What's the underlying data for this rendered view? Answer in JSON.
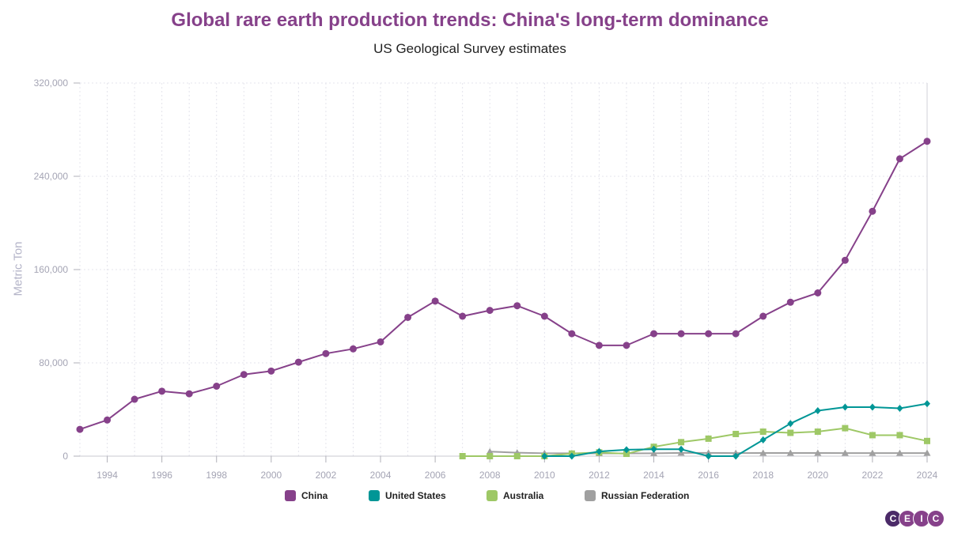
{
  "chart_data": {
    "type": "line",
    "title": "Global rare earth production trends: China's long-term dominance",
    "subtitle": "US Geological Survey estimates",
    "ylabel": "Metric Ton",
    "ylim": [
      0,
      320000
    ],
    "yticks": [
      0,
      80000,
      160000,
      240000,
      320000
    ],
    "ytick_labels": [
      "0",
      "80,000",
      "160,000",
      "240,000",
      "320,000"
    ],
    "xlim": [
      1993,
      2024
    ],
    "xticks": [
      1994,
      1996,
      1998,
      2000,
      2002,
      2004,
      2006,
      2008,
      2010,
      2012,
      2014,
      2016,
      2018,
      2020,
      2022,
      2024
    ],
    "xtick_labels": [
      "1994",
      "1996",
      "1998",
      "2000",
      "2002",
      "2004",
      "2006",
      "2008",
      "2010",
      "2012",
      "2014",
      "2016",
      "2018",
      "2020",
      "2022",
      "2024"
    ],
    "grid": true,
    "legend_position": "bottom-center",
    "series": [
      {
        "name": "China",
        "color": "#86418a",
        "marker": "circle",
        "x": [
          1993,
          1994,
          1995,
          1996,
          1997,
          1998,
          1999,
          2000,
          2001,
          2002,
          2003,
          2004,
          2005,
          2006,
          2007,
          2008,
          2009,
          2010,
          2011,
          2012,
          2013,
          2014,
          2015,
          2016,
          2017,
          2018,
          2019,
          2020,
          2021,
          2022,
          2023,
          2024
        ],
        "values": [
          23000,
          31000,
          48800,
          55700,
          53500,
          60000,
          70000,
          73000,
          80600,
          88000,
          92000,
          98000,
          119000,
          133000,
          120000,
          125000,
          129000,
          120000,
          105000,
          95000,
          95000,
          105000,
          105000,
          105000,
          105000,
          120000,
          132000,
          140000,
          168000,
          210000,
          255000,
          270000
        ]
      },
      {
        "name": "United States",
        "color": "#009696",
        "marker": "diamond",
        "x": [
          2010,
          2011,
          2012,
          2013,
          2014,
          2015,
          2016,
          2017,
          2018,
          2019,
          2020,
          2021,
          2022,
          2023,
          2024
        ],
        "values": [
          0,
          0,
          4000,
          5500,
          5900,
          5900,
          0,
          0,
          14000,
          28000,
          39000,
          42000,
          42000,
          41000,
          45000
        ]
      },
      {
        "name": "Australia",
        "color": "#9ec866",
        "marker": "square",
        "x": [
          2007,
          2008,
          2009,
          2010,
          2011,
          2012,
          2013,
          2014,
          2015,
          2016,
          2017,
          2018,
          2019,
          2020,
          2021,
          2022,
          2023,
          2024
        ],
        "values": [
          0,
          0,
          0,
          0,
          2200,
          3200,
          2000,
          8000,
          12000,
          15000,
          19000,
          21000,
          20000,
          21000,
          24000,
          18000,
          18000,
          13000
        ]
      },
      {
        "name": "Russian Federation",
        "color": "#a0a0a0",
        "marker": "triangle",
        "x": [
          2008,
          2009,
          2010,
          2011,
          2012,
          2013,
          2014,
          2015,
          2016,
          2017,
          2018,
          2019,
          2020,
          2021,
          2022,
          2023,
          2024
        ],
        "values": [
          3900,
          3000,
          2500,
          2500,
          2400,
          2400,
          2500,
          2800,
          2800,
          2600,
          2700,
          2700,
          2700,
          2600,
          2600,
          2600,
          2600
        ]
      }
    ]
  },
  "brand": {
    "letters": [
      "C",
      "E",
      "I",
      "C"
    ],
    "colors": [
      "#4b2a68",
      "#86418a",
      "#86418a",
      "#86418a"
    ]
  }
}
